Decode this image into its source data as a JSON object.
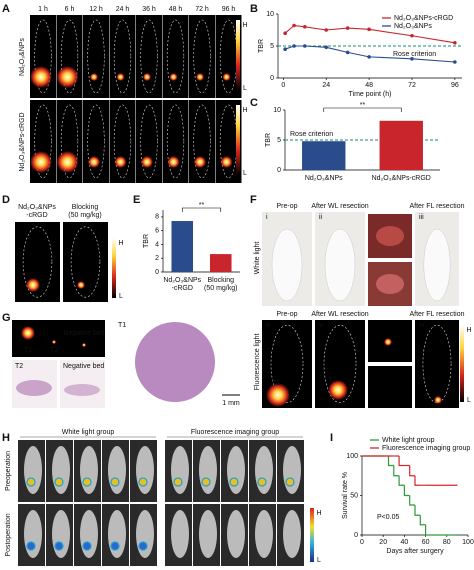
{
  "figure": {
    "panel_labels": [
      "A",
      "B",
      "C",
      "D",
      "E",
      "F",
      "G",
      "H",
      "I"
    ],
    "a": {
      "times": [
        "1 h",
        "6 h",
        "12 h",
        "24 h",
        "36 h",
        "48 h",
        "72 h",
        "96 h"
      ],
      "rows": [
        "Nd₂O₃&NPs",
        "Nd₂O₃&NPs-cRGD"
      ],
      "scale": [
        "H",
        "L"
      ]
    },
    "d": {
      "images": [
        [
          "Nd₂O₃&NPs",
          "-cRGD"
        ],
        [
          "Blocking",
          "(50 mg/kg)"
        ]
      ],
      "scale": [
        "H",
        "L"
      ]
    },
    "f": {
      "columns": [
        "Pre-op",
        "After WL resection",
        "After FL resection"
      ],
      "columns_fl": [
        "Pre-op",
        "After WL resection",
        "After FL resection"
      ],
      "rows": [
        "White light",
        "Fluorescence light"
      ],
      "numerals": [
        "i",
        "ii",
        "iii",
        "iv",
        "v",
        "vi"
      ],
      "tumor_labels": [
        "T1",
        "T2"
      ],
      "scale": [
        "H",
        "L"
      ]
    },
    "g": {
      "labels": [
        "T1",
        "T2",
        "Negative bed"
      ],
      "histology": [
        "T2",
        "Negative bed",
        "T1"
      ],
      "scalebar": "1 mm"
    },
    "h": {
      "groups": [
        "White light group",
        "Fluorescence imaging group"
      ],
      "rows": [
        "Preoperation",
        "Postoperation"
      ],
      "scale": [
        "H",
        "L"
      ]
    }
  },
  "chart_data": [
    {
      "type": "line",
      "x": [
        1,
        6,
        12,
        24,
        36,
        48,
        72,
        96
      ],
      "series": [
        {
          "name": "Nd₂O₃&NPs-cRGD",
          "color": "#c8262c",
          "values": [
            7.0,
            8.2,
            8.0,
            7.5,
            7.8,
            7.6,
            6.6,
            5.5
          ]
        },
        {
          "name": "Nd₂O₃&NPs",
          "color": "#2b4c8c",
          "values": [
            4.5,
            5.0,
            5.0,
            4.8,
            4.0,
            3.3,
            3.0,
            2.5
          ]
        }
      ],
      "xlim": [
        -3,
        100
      ],
      "xticks": [
        0,
        24,
        48,
        72,
        96
      ],
      "ylim": [
        0,
        10
      ],
      "yticks": [
        0,
        5,
        10
      ],
      "xlabel": "Time point (h)",
      "ylabel": "TBR",
      "reference_line": 5,
      "reference_label": "Rose criterion",
      "reference_color": "#1a8a7a",
      "legend": "upper right"
    },
    {
      "type": "bar",
      "categories": [
        [
          "Nd₂O₃&NPs"
        ],
        [
          "Nd₂O₃&NPs-cRGD"
        ]
      ],
      "values": [
        4.8,
        8.2
      ],
      "colors": [
        "#2b4c8c",
        "#c8262c"
      ],
      "ylim": [
        0,
        10
      ],
      "yticks": [
        0,
        5,
        10
      ],
      "ylabel": "TBR",
      "reference_line": 5,
      "reference_label": "Rose criterion",
      "reference_color": "#1a8a7a",
      "significance": "**"
    },
    {
      "type": "bar",
      "categories": [
        [
          "Nd₂O₃&NPs",
          "-cRGD"
        ],
        [
          "Blocking",
          "(50 mg/kg)"
        ]
      ],
      "values": [
        7.4,
        2.6
      ],
      "colors": [
        "#2b4c8c",
        "#c8262c"
      ],
      "ylim": [
        0,
        9
      ],
      "yticks": [
        0,
        2,
        4,
        6,
        8
      ],
      "ylabel": "TBR",
      "significance": "**"
    },
    {
      "type": "line",
      "step": true,
      "x": [
        0,
        20,
        25,
        30,
        35,
        40,
        45,
        50,
        55,
        60,
        90
      ],
      "series": [
        {
          "name": "White light group",
          "color": "#2e9a3a",
          "values": [
            100,
            100,
            88,
            75,
            63,
            50,
            38,
            25,
            13,
            0,
            null
          ]
        },
        {
          "name": "Fluorescence imaging group",
          "color": "#d8262c",
          "values": [
            100,
            100,
            100,
            100,
            88,
            88,
            75,
            63,
            63,
            63,
            63
          ]
        }
      ],
      "xlim": [
        0,
        100
      ],
      "xticks": [
        0,
        20,
        40,
        60,
        80,
        100
      ],
      "ylim": [
        0,
        100
      ],
      "yticks": [
        0,
        50,
        100
      ],
      "xlabel": "Days after surgery",
      "ylabel": "Survival rate %",
      "annotation": "P<0.05",
      "legend": "upper right"
    }
  ]
}
